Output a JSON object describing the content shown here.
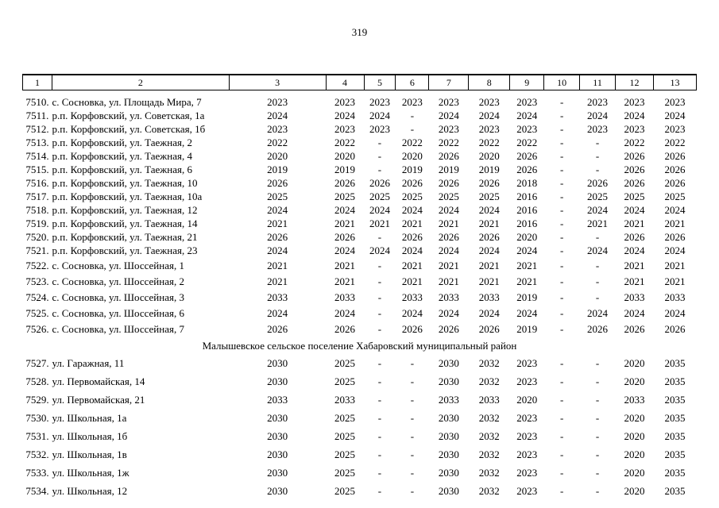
{
  "page_number": "319",
  "table": {
    "column_headers": [
      "1",
      "2",
      "3",
      "4",
      "5",
      "6",
      "7",
      "8",
      "9",
      "10",
      "11",
      "12",
      "13"
    ],
    "sections": [
      {
        "title": "",
        "rows": [
          {
            "num": "7510.",
            "address": "с. Сосновка, ул. Площадь Мира, 7",
            "values": [
              "2023",
              "2023",
              "2023",
              "2023",
              "2023",
              "2023",
              "2023",
              "-",
              "2023",
              "2023",
              "2023"
            ]
          },
          {
            "num": "7511.",
            "address": "р.п. Корфовский, ул. Советская, 1а",
            "values": [
              "2024",
              "2024",
              "2024",
              "-",
              "2024",
              "2024",
              "2024",
              "-",
              "2024",
              "2024",
              "2024"
            ]
          },
          {
            "num": "7512.",
            "address": "р.п. Корфовский, ул. Советская, 1б",
            "values": [
              "2023",
              "2023",
              "2023",
              "-",
              "2023",
              "2023",
              "2023",
              "-",
              "2023",
              "2023",
              "2023"
            ]
          },
          {
            "num": "7513.",
            "address": "р.п. Корфовский, ул. Таежная, 2",
            "values": [
              "2022",
              "2022",
              "-",
              "2022",
              "2022",
              "2022",
              "2022",
              "-",
              "-",
              "2022",
              "2022"
            ]
          },
          {
            "num": "7514.",
            "address": "р.п. Корфовский, ул. Таежная, 4",
            "values": [
              "2020",
              "2020",
              "-",
              "2020",
              "2026",
              "2020",
              "2026",
              "-",
              "-",
              "2026",
              "2026"
            ]
          },
          {
            "num": "7515.",
            "address": "р.п. Корфовский, ул. Таежная, 6",
            "values": [
              "2019",
              "2019",
              "-",
              "2019",
              "2019",
              "2019",
              "2026",
              "-",
              "-",
              "2026",
              "2026"
            ]
          },
          {
            "num": "7516.",
            "address": "р.п. Корфовский, ул. Таежная, 10",
            "values": [
              "2026",
              "2026",
              "2026",
              "2026",
              "2026",
              "2026",
              "2018",
              "-",
              "2026",
              "2026",
              "2026"
            ]
          },
          {
            "num": "7517.",
            "address": "р.п. Корфовский, ул. Таежная, 10а",
            "values": [
              "2025",
              "2025",
              "2025",
              "2025",
              "2025",
              "2025",
              "2016",
              "-",
              "2025",
              "2025",
              "2025"
            ]
          },
          {
            "num": "7518.",
            "address": "р.п. Корфовский, ул. Таежная, 12",
            "values": [
              "2024",
              "2024",
              "2024",
              "2024",
              "2024",
              "2024",
              "2016",
              "-",
              "2024",
              "2024",
              "2024"
            ]
          },
          {
            "num": "7519.",
            "address": "р.п. Корфовский, ул. Таежная, 14",
            "values": [
              "2021",
              "2021",
              "2021",
              "2021",
              "2021",
              "2021",
              "2016",
              "-",
              "2021",
              "2021",
              "2021"
            ]
          },
          {
            "num": "7520.",
            "address": "р.п. Корфовский, ул. Таежная, 21",
            "values": [
              "2026",
              "2026",
              "-",
              "2026",
              "2026",
              "2026",
              "2020",
              "-",
              "-",
              "2026",
              "2026"
            ]
          },
          {
            "num": "7521.",
            "address": "р.п. Корфовский, ул. Таежная, 23",
            "values": [
              "2024",
              "2024",
              "2024",
              "2024",
              "2024",
              "2024",
              "2024",
              "-",
              "2024",
              "2024",
              "2024"
            ]
          },
          {
            "num": "7522.",
            "address": "с. Сосновка, ул. Шоссейная, 1",
            "values": [
              "2021",
              "2021",
              "-",
              "2021",
              "2021",
              "2021",
              "2021",
              "-",
              "-",
              "2021",
              "2021"
            ]
          },
          {
            "num": "7523.",
            "address": "с. Сосновка, ул. Шоссейная, 2",
            "values": [
              "2021",
              "2021",
              "-",
              "2021",
              "2021",
              "2021",
              "2021",
              "-",
              "-",
              "2021",
              "2021"
            ]
          },
          {
            "num": "7524.",
            "address": "с. Сосновка, ул. Шоссейная, 3",
            "values": [
              "2033",
              "2033",
              "-",
              "2033",
              "2033",
              "2033",
              "2019",
              "-",
              "-",
              "2033",
              "2033"
            ]
          },
          {
            "num": "7525.",
            "address": "с. Сосновка, ул. Шоссейная, 6",
            "values": [
              "2024",
              "2024",
              "-",
              "2024",
              "2024",
              "2024",
              "2024",
              "-",
              "2024",
              "2024",
              "2024"
            ]
          },
          {
            "num": "7526.",
            "address": "с. Сосновка, ул. Шоссейная, 7",
            "values": [
              "2026",
              "2026",
              "-",
              "2026",
              "2026",
              "2026",
              "2019",
              "-",
              "2026",
              "2026",
              "2026"
            ]
          }
        ]
      },
      {
        "title": "Малышевское сельское поселение Хабаровский муниципальный район",
        "rows": [
          {
            "num": "7527.",
            "address": "ул. Гаражная, 11",
            "values": [
              "2030",
              "2025",
              "-",
              "-",
              "2030",
              "2032",
              "2023",
              "-",
              "-",
              "2020",
              "2035"
            ]
          },
          {
            "num": "7528.",
            "address": "ул. Первомайская, 14",
            "values": [
              "2030",
              "2025",
              "-",
              "-",
              "2030",
              "2032",
              "2023",
              "-",
              "-",
              "2020",
              "2035"
            ]
          },
          {
            "num": "7529.",
            "address": "ул. Первомайская, 21",
            "values": [
              "2033",
              "2033",
              "-",
              "-",
              "2033",
              "2033",
              "2020",
              "-",
              "-",
              "2033",
              "2035"
            ]
          },
          {
            "num": "7530.",
            "address": "ул. Школьная, 1а",
            "values": [
              "2030",
              "2025",
              "-",
              "-",
              "2030",
              "2032",
              "2023",
              "-",
              "-",
              "2020",
              "2035"
            ]
          },
          {
            "num": "7531.",
            "address": "ул. Школьная, 1б",
            "values": [
              "2030",
              "2025",
              "-",
              "-",
              "2030",
              "2032",
              "2023",
              "-",
              "-",
              "2020",
              "2035"
            ]
          },
          {
            "num": "7532.",
            "address": "ул. Школьная, 1в",
            "values": [
              "2030",
              "2025",
              "-",
              "-",
              "2030",
              "2032",
              "2023",
              "-",
              "-",
              "2020",
              "2035"
            ]
          },
          {
            "num": "7533.",
            "address": "ул. Школьная, 1ж",
            "values": [
              "2030",
              "2025",
              "-",
              "-",
              "2030",
              "2032",
              "2023",
              "-",
              "-",
              "2020",
              "2035"
            ]
          },
          {
            "num": "7534.",
            "address": "ул. Школьная, 12",
            "values": [
              "2030",
              "2025",
              "-",
              "-",
              "2030",
              "2032",
              "2023",
              "-",
              "-",
              "2020",
              "2035"
            ]
          }
        ]
      }
    ]
  }
}
